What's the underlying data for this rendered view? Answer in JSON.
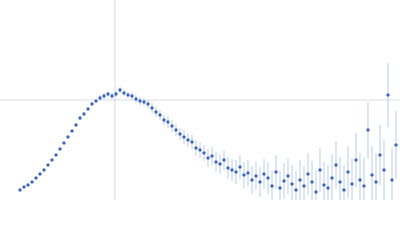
{
  "chart_data": {
    "type": "scatter",
    "color": "#3a66c0",
    "error_color": "#a9bfe6",
    "grid_color": "#ccd3dd",
    "grid": true,
    "xlim": [
      0,
      400
    ],
    "ylim": [
      0,
      200
    ],
    "xticks": [
      115
    ],
    "yticks": [
      100
    ],
    "x": [
      20,
      24,
      28,
      32,
      36,
      40,
      44,
      48,
      52,
      56,
      60,
      64,
      68,
      72,
      76,
      80,
      84,
      88,
      92,
      96,
      100,
      104,
      108,
      112,
      116,
      120,
      124,
      128,
      132,
      136,
      140,
      144,
      148,
      152,
      156,
      160,
      164,
      168,
      172,
      176,
      180,
      184,
      188,
      192,
      196,
      200,
      204,
      208,
      212,
      216,
      220,
      224,
      228,
      232,
      236,
      240,
      244,
      248,
      252,
      256,
      260,
      264,
      268,
      272,
      276,
      280,
      284,
      288,
      292,
      296,
      300,
      304,
      308,
      312,
      316,
      320,
      324,
      328,
      332,
      336,
      340,
      344,
      348,
      352,
      356,
      360,
      364,
      368,
      372,
      376,
      380,
      384,
      388,
      392,
      396
    ],
    "values": [
      10,
      13,
      15,
      18,
      22,
      26,
      30,
      35,
      40,
      45,
      51,
      57,
      63,
      69,
      75,
      82,
      86,
      91,
      96,
      99,
      102,
      104,
      106,
      104,
      106,
      110,
      107,
      105,
      104,
      101,
      99,
      98,
      96,
      92,
      88,
      85,
      80,
      78,
      74,
      70,
      66,
      63,
      60,
      58,
      52,
      50,
      47,
      42,
      44,
      38,
      36,
      40,
      32,
      30,
      28,
      33,
      25,
      27,
      20,
      24,
      18,
      26,
      22,
      14,
      28,
      12,
      19,
      24,
      16,
      10,
      20,
      14,
      26,
      18,
      8,
      30,
      15,
      12,
      22,
      35,
      18,
      10,
      28,
      16,
      40,
      20,
      14,
      70,
      25,
      18,
      45,
      30,
      105,
      20,
      55
    ],
    "errors": [
      1,
      1,
      1,
      1,
      1,
      1,
      1,
      1,
      1,
      1,
      1,
      1,
      1,
      1,
      2,
      2,
      2,
      2,
      2,
      2,
      3,
      3,
      3,
      3,
      3,
      3,
      3,
      3,
      4,
      4,
      4,
      4,
      4,
      5,
      5,
      5,
      5,
      6,
      6,
      6,
      6,
      7,
      7,
      7,
      8,
      8,
      8,
      9,
      9,
      10,
      10,
      10,
      11,
      11,
      12,
      12,
      13,
      13,
      14,
      14,
      15,
      15,
      16,
      16,
      17,
      17,
      18,
      18,
      19,
      19,
      20,
      20,
      21,
      21,
      22,
      22,
      23,
      23,
      24,
      24,
      25,
      25,
      26,
      26,
      27,
      27,
      28,
      28,
      29,
      29,
      30,
      30,
      32,
      32,
      34
    ]
  }
}
